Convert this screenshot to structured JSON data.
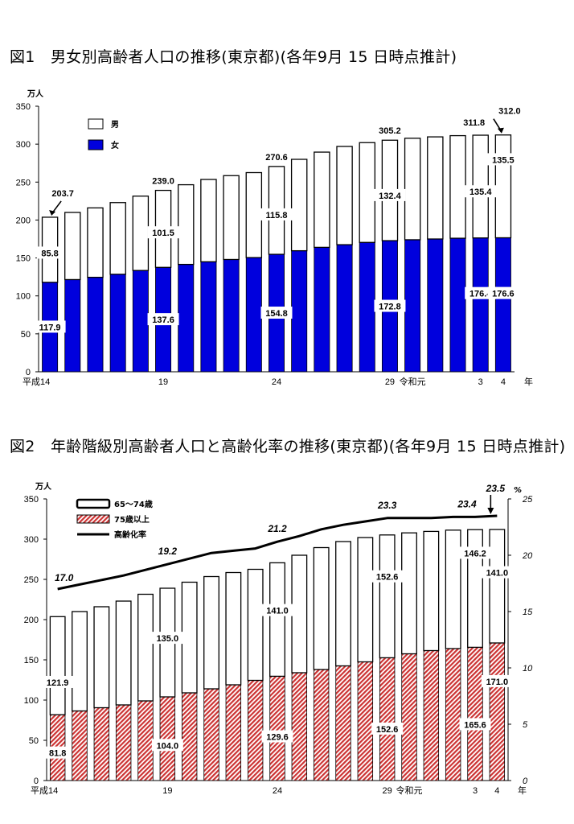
{
  "figure1": {
    "title": "図1　男女別高齢者人口の推移(東京都)(各年9月 15 日時点推計)",
    "unit": "万人",
    "year_suffix": "年",
    "colors": {
      "female": "#0000dd",
      "male": "#ffffff"
    },
    "chart_data": {
      "type": "bar",
      "stacked": true,
      "categories": [
        "平成14",
        "",
        "",
        "",
        "",
        "19",
        "",
        "",
        "",
        "",
        "24",
        "",
        "",
        "",
        "",
        "29",
        "令和元",
        "",
        "",
        "3",
        "4"
      ],
      "ylim": [
        0,
        350
      ],
      "yticks": [
        0,
        50,
        100,
        150,
        200,
        250,
        300,
        350
      ],
      "legend_position": "top-left",
      "series": [
        {
          "name": "女",
          "values": [
            117.9,
            121.5,
            124.5,
            128.5,
            133.5,
            137.6,
            141.5,
            145,
            148,
            150.5,
            154.8,
            159.5,
            164,
            167.5,
            170.5,
            172.8,
            174,
            175,
            176,
            176.4,
            176.6
          ]
        },
        {
          "name": "男",
          "values": [
            85.8,
            88.5,
            91.5,
            94.5,
            98,
            101.5,
            105,
            108.5,
            110.5,
            112,
            115.8,
            120.5,
            125.5,
            129.5,
            131.5,
            132.4,
            133.8,
            134.6,
            135.2,
            135.4,
            135.5
          ]
        }
      ],
      "totals": [
        203.7,
        210,
        216,
        223,
        231.5,
        239.0,
        246.5,
        253.5,
        258.5,
        262.5,
        270.6,
        280,
        289.5,
        297,
        302,
        305.2,
        307.8,
        309.6,
        311.2,
        311.8,
        312.0
      ],
      "total_labels": [
        {
          "index": 0,
          "text": "203.7"
        },
        {
          "index": 5,
          "text": "239.0"
        },
        {
          "index": 10,
          "text": "270.6"
        },
        {
          "index": 15,
          "text": "305.2"
        },
        {
          "index": 19,
          "text": "311.8"
        },
        {
          "index": 20,
          "text": "312.0"
        }
      ],
      "female_labels": [
        {
          "index": 0,
          "text": "117.9"
        },
        {
          "index": 5,
          "text": "137.6"
        },
        {
          "index": 10,
          "text": "154.8"
        },
        {
          "index": 15,
          "text": "172.8"
        },
        {
          "index": 19,
          "text": "176.4"
        },
        {
          "index": 20,
          "text": "176.6"
        }
      ],
      "male_labels": [
        {
          "index": 0,
          "text": "85.8"
        },
        {
          "index": 5,
          "text": "101.5"
        },
        {
          "index": 10,
          "text": "115.8"
        },
        {
          "index": 15,
          "text": "132.4"
        },
        {
          "index": 19,
          "text": "135.4"
        },
        {
          "index": 20,
          "text": "135.5"
        }
      ]
    }
  },
  "figure2": {
    "title": "図2　年齢階級別高齢者人口と高齢化率の推移(東京都)(各年9月 15 日時点推計)",
    "unit": "万人",
    "right_unit": "%",
    "year_suffix": "年",
    "colors": {
      "age75": "#cc3333",
      "age65_74": "#ffffff",
      "rate_line": "#000000"
    },
    "chart_data": {
      "type": "bar",
      "stacked": true,
      "secondary_line": true,
      "categories": [
        "平成14",
        "",
        "",
        "",
        "",
        "19",
        "",
        "",
        "",
        "",
        "24",
        "",
        "",
        "",
        "",
        "29",
        "令和元",
        "",
        "",
        "3",
        "4"
      ],
      "ylim": [
        0,
        350
      ],
      "yticks": [
        0,
        50,
        100,
        150,
        200,
        250,
        300,
        350
      ],
      "y2lim": [
        0,
        25
      ],
      "y2ticks": [
        0,
        5,
        10,
        15,
        20,
        25
      ],
      "legend_position": "top-left",
      "series": [
        {
          "name": "75歳以上",
          "values": [
            81.8,
            86.5,
            90.5,
            94,
            99,
            104.0,
            109,
            114,
            119,
            124.5,
            129.6,
            134,
            138,
            142.5,
            147.5,
            152.6,
            157.5,
            161.5,
            164,
            165.6,
            171.0
          ]
        },
        {
          "name": "65～74歳",
          "values": [
            121.9,
            123.5,
            125.5,
            129,
            132.5,
            135.0,
            137.5,
            139.5,
            139.5,
            138,
            141.0,
            146,
            151.5,
            154.5,
            154.5,
            152.6,
            150.3,
            148.1,
            147.2,
            146.2,
            141.0
          ]
        },
        {
          "name": "高齢化率",
          "axis": "right",
          "values": [
            17.0,
            17.4,
            17.8,
            18.2,
            18.7,
            19.2,
            19.7,
            20.2,
            20.4,
            20.6,
            21.2,
            21.7,
            22.3,
            22.7,
            23.0,
            23.3,
            23.3,
            23.3,
            23.4,
            23.4,
            23.5
          ]
        }
      ],
      "age75_labels": [
        {
          "index": 0,
          "text": "81.8"
        },
        {
          "index": 5,
          "text": "104.0"
        },
        {
          "index": 10,
          "text": "129.6"
        },
        {
          "index": 15,
          "text": "152.6"
        },
        {
          "index": 19,
          "text": "165.6"
        },
        {
          "index": 20,
          "text": "171.0"
        }
      ],
      "age65_labels": [
        {
          "index": 0,
          "text": "121.9"
        },
        {
          "index": 5,
          "text": "135.0"
        },
        {
          "index": 10,
          "text": "141.0"
        },
        {
          "index": 15,
          "text": "152.6"
        },
        {
          "index": 19,
          "text": "146.2"
        },
        {
          "index": 20,
          "text": "141.0"
        }
      ],
      "rate_labels": [
        {
          "index": 0,
          "text": "17.0"
        },
        {
          "index": 5,
          "text": "19.2"
        },
        {
          "index": 10,
          "text": "21.2"
        },
        {
          "index": 15,
          "text": "23.3"
        },
        {
          "index": 19,
          "text": "23.4"
        },
        {
          "index": 20,
          "text": "23.5"
        }
      ]
    }
  }
}
